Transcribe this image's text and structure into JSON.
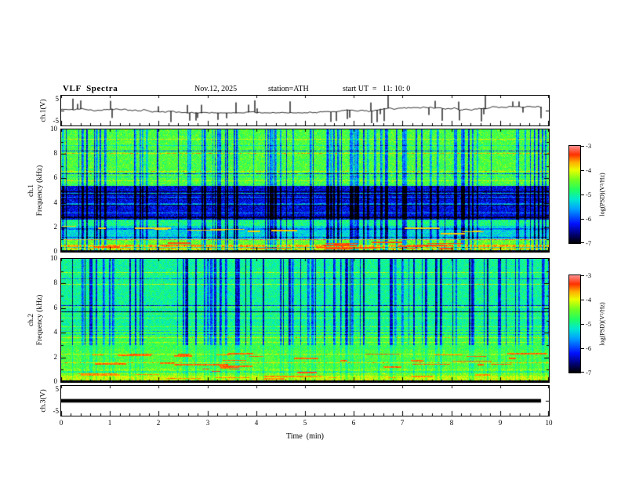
{
  "header": {
    "title": "VLF  Spectra",
    "date": "Nov.12, 2025",
    "station": "station=ATH",
    "start_ut": "start UT  =   11: 10: 0"
  },
  "xaxis": {
    "label": "Time  (min)",
    "tick_labels": [
      "0",
      "1",
      "2",
      "3",
      "4",
      "5",
      "6",
      "7",
      "8",
      "9",
      "10"
    ]
  },
  "panels": {
    "wave1": {
      "ylabel": "ch.1(V)",
      "ytick_top": "5",
      "ytick_bottom": "-5"
    },
    "spec1": {
      "ylabel_line1": "ch.1",
      "ylabel_line2": "Frequency (kHz)",
      "ytick_labels": [
        "10",
        "8",
        "6",
        "4",
        "2",
        "0"
      ]
    },
    "spec2": {
      "ylabel_line1": "ch.2",
      "ylabel_line2": "Frequency (kHz)",
      "ytick_labels": [
        "10",
        "8",
        "6",
        "4",
        "2",
        "0"
      ]
    },
    "wave3": {
      "ylabel": "ch.3(V)",
      "ytick_top": "5",
      "ytick_bottom": "-5"
    }
  },
  "colorbar": {
    "label": "log(PSD)(V²/Hz)",
    "tick_labels": [
      "-3",
      "-4",
      "-5",
      "-6",
      "-7"
    ],
    "stops": [
      {
        "t": 0.0,
        "c": "#000000"
      },
      {
        "t": 0.08,
        "c": "#000066"
      },
      {
        "t": 0.2,
        "c": "#0010ff"
      },
      {
        "t": 0.35,
        "c": "#00a0ff"
      },
      {
        "t": 0.45,
        "c": "#00e8d0"
      },
      {
        "t": 0.55,
        "c": "#20ff60"
      },
      {
        "t": 0.65,
        "c": "#70ff20"
      },
      {
        "t": 0.75,
        "c": "#e8ff00"
      },
      {
        "t": 0.83,
        "c": "#ffb000"
      },
      {
        "t": 0.91,
        "c": "#ff3000"
      },
      {
        "t": 1.0,
        "c": "#ff9090"
      }
    ]
  },
  "chart_data": [
    {
      "name": "ch1_waveform",
      "type": "line",
      "ylabel": "ch.1(V)",
      "xlim_min": [
        0,
        10
      ],
      "ylim_v": [
        -5,
        5
      ],
      "x_end_min": 9.87,
      "baseline_v": 0.35,
      "noise_v": 0.35,
      "spike_prob": 0.06,
      "spike_amp_v": [
        1.5,
        4.5
      ],
      "spike_down_frac": 0.6,
      "seed": 11,
      "description": "Broadband noisy trace around 0 to +1 V with frequent impulsive sferic spikes reaching the ±5 V panel limits over 0–9.87 min"
    },
    {
      "name": "ch1_spectrogram",
      "type": "heatmap",
      "ylabel": "ch.1 Frequency (kHz)",
      "xlim_min": [
        0,
        10
      ],
      "ylim_khz": [
        0,
        10
      ],
      "zlabel": "log(PSD)(V²/Hz)",
      "zlim": [
        -7,
        -3
      ],
      "noise": 0.5,
      "seed": 21,
      "bands": [
        {
          "f": [
            0,
            0.15
          ],
          "v": -7.0
        },
        {
          "f": [
            0.15,
            0.25
          ],
          "v": -4.2
        },
        {
          "f": [
            0.25,
            0.6
          ],
          "v": -3.7
        },
        {
          "f": [
            0.6,
            1.0
          ],
          "v": -4.5
        },
        {
          "f": [
            1.0,
            2.1
          ],
          "v": -5.3
        },
        {
          "f": [
            2.1,
            2.6
          ],
          "v": -4.9
        },
        {
          "f": [
            2.6,
            5.4
          ],
          "v": -6.3
        },
        {
          "f": [
            5.4,
            10
          ],
          "v": -4.6
        }
      ],
      "vertical_streaks": {
        "count": 95,
        "depth": -1.7,
        "min_f": 0
      },
      "horizontal_lines": {
        "count": 30,
        "delta": [
          -1.3,
          1.0
        ]
      },
      "red_segments": [
        {
          "count": 20,
          "f": [
            0.25,
            0.8
          ],
          "v": -3.4
        },
        {
          "count": 12,
          "f": [
            1.5,
            2.1
          ],
          "v": -3.8
        }
      ]
    },
    {
      "name": "ch2_spectrogram",
      "type": "heatmap",
      "ylabel": "ch.2 Frequency (kHz)",
      "xlim_min": [
        0,
        10
      ],
      "ylim_khz": [
        0,
        10
      ],
      "zlabel": "log(PSD)(V²/Hz)",
      "zlim": [
        -7,
        -3
      ],
      "noise": 0.45,
      "seed": 33,
      "bands": [
        {
          "f": [
            0,
            0.15
          ],
          "v": -7.0
        },
        {
          "f": [
            0.15,
            0.5
          ],
          "v": -4.1
        },
        {
          "f": [
            0.5,
            1.1
          ],
          "v": -4.4
        },
        {
          "f": [
            1.1,
            2.6
          ],
          "v": -4.6
        },
        {
          "f": [
            2.6,
            4.2
          ],
          "v": -4.7
        },
        {
          "f": [
            4.2,
            10
          ],
          "v": -5.0
        }
      ],
      "vertical_streaks": {
        "count": 90,
        "depth": -1.7,
        "min_f": 3.0
      },
      "horizontal_lines": {
        "count": 26,
        "delta": [
          -1.2,
          0.9
        ]
      },
      "red_segments": [
        {
          "count": 28,
          "f": [
            1.2,
            2.5
          ],
          "v": -3.5
        },
        {
          "count": 14,
          "f": [
            0.3,
            0.7
          ],
          "v": -3.6
        },
        {
          "count": 5,
          "f": [
            0.8,
            1.2
          ],
          "v": -3.3
        }
      ]
    },
    {
      "name": "ch3_waveform",
      "type": "line",
      "ylabel": "ch.3(V)",
      "xlim_min": [
        0,
        10
      ],
      "ylim_v": [
        -5,
        5
      ],
      "x_end_min": 9.85,
      "constant_v": 0,
      "line_thickness_v": 1.2,
      "seed": 44,
      "description": "Flat channel: thick constant black line at 0 V spanning 0–9.85 min"
    }
  ]
}
